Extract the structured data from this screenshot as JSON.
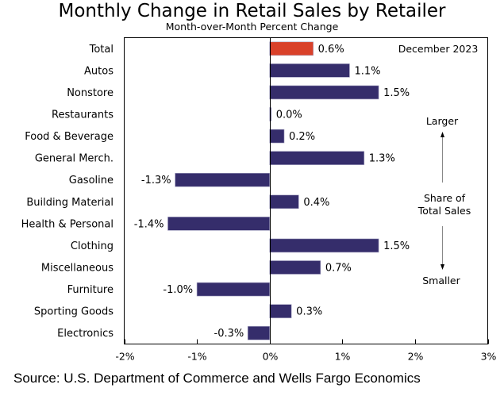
{
  "chart_data": {
    "type": "bar",
    "orientation": "horizontal",
    "title": "Monthly Change in Retail Sales by Retailer",
    "subtitle": "Month-over-Month Percent Change",
    "categories": [
      "Total",
      "Autos",
      "Nonstore",
      "Restaurants",
      "Food & Beverage",
      "General Merch.",
      "Gasoline",
      "Building Material",
      "Health & Personal",
      "Clothing",
      "Miscellaneous",
      "Furniture",
      "Sporting Goods",
      "Electronics"
    ],
    "values": [
      0.6,
      1.1,
      1.5,
      0.0,
      0.2,
      1.3,
      -1.3,
      0.4,
      -1.4,
      1.5,
      0.7,
      -1.0,
      0.3,
      -0.3
    ],
    "value_labels": [
      "0.6%",
      "1.1%",
      "1.5%",
      "0.0%",
      "0.2%",
      "1.3%",
      "-1.3%",
      "0.4%",
      "-1.4%",
      "1.5%",
      "0.7%",
      "-1.0%",
      "0.3%",
      "-0.3%"
    ],
    "highlight_index": 0,
    "colors": {
      "highlight": "#d9412a",
      "default": "#352d6b"
    },
    "xlim": [
      -2,
      3
    ],
    "xticks": [
      -2,
      -1,
      0,
      1,
      2,
      3
    ],
    "xtick_labels": [
      "-2%",
      "-1%",
      "0%",
      "1%",
      "2%",
      "3%"
    ],
    "xlabel": "",
    "ylabel": "",
    "grid": false,
    "legend": null,
    "annotations": {
      "date": "December 2023",
      "larger": "Larger",
      "share_line1": "Share of",
      "share_line2": "Total Sales",
      "smaller": "Smaller"
    },
    "source": "Source: U.S. Department of Commerce and Wells Fargo Economics"
  }
}
